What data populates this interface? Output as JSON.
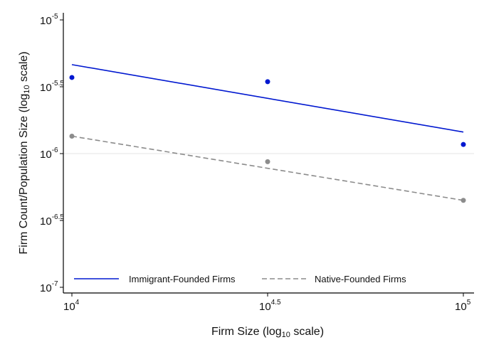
{
  "chart_data": {
    "type": "scatter",
    "xlabel_main": "Firm Size (log",
    "xlabel_sub": "10",
    "xlabel_end": " scale)",
    "ylabel_main": "Firm Count/Population Size (log",
    "ylabel_sub": "10",
    "ylabel_end": " scale)",
    "x_scale": "log10",
    "y_scale": "log10",
    "xlim": [
      10000,
      100000
    ],
    "ylim": [
      1e-07,
      1e-05
    ],
    "x_ticks": [
      {
        "value": 10000,
        "base": "10",
        "exp": "4"
      },
      {
        "value": 31623,
        "base": "10",
        "exp": "4.5"
      },
      {
        "value": 100000,
        "base": "10",
        "exp": "5"
      }
    ],
    "y_ticks": [
      {
        "value": 1e-05,
        "base": "10",
        "exp": "-5"
      },
      {
        "value": 3.162e-06,
        "base": "10",
        "exp": "-5.5"
      },
      {
        "value": 1e-06,
        "base": "10",
        "exp": "-6"
      },
      {
        "value": 3.162e-07,
        "base": "10",
        "exp": "-6.5"
      },
      {
        "value": 1e-07,
        "base": "10",
        "exp": "-7"
      }
    ],
    "grid_lines_y": [
      1e-06
    ],
    "legend_position": "bottom",
    "series": [
      {
        "name": "Immigrant-Founded Firms",
        "color": "#0018d0",
        "line_style": "solid",
        "points": [
          {
            "x": 10000,
            "y": 3.71e-06
          },
          {
            "x": 31623,
            "y": 3.45e-06
          },
          {
            "x": 100000,
            "y": 1.17e-06
          }
        ],
        "fit": [
          {
            "x": 10000,
            "y": 4.63e-06
          },
          {
            "x": 100000,
            "y": 1.45e-06
          }
        ]
      },
      {
        "name": "Native-Founded Firms",
        "color": "#8c8c8c",
        "line_style": "dashed",
        "points": [
          {
            "x": 10000,
            "y": 1.35e-06
          },
          {
            "x": 31623,
            "y": 8.7e-07
          },
          {
            "x": 100000,
            "y": 4.47e-07
          }
        ],
        "fit": [
          {
            "x": 10000,
            "y": 1.35e-06
          },
          {
            "x": 100000,
            "y": 4.47e-07
          }
        ]
      }
    ]
  }
}
